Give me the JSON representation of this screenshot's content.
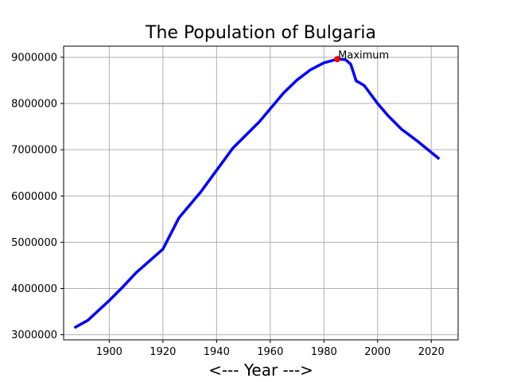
{
  "chart_data": {
    "type": "line",
    "title": "The Population of Bulgaria",
    "xlabel": "<--- Year --->",
    "ylabel": "",
    "xlim": [
      1883,
      2030
    ],
    "ylim": [
      2890000,
      9240000
    ],
    "xticks": [
      1900,
      1920,
      1940,
      1960,
      1980,
      2000,
      2020
    ],
    "yticks": [
      3000000,
      4000000,
      5000000,
      6000000,
      7000000,
      8000000,
      9000000
    ],
    "grid": true,
    "series": [
      {
        "color": "#0000ff",
        "points": [
          [
            1887,
            3150000
          ],
          [
            1892,
            3310000
          ],
          [
            1900,
            3740000
          ],
          [
            1905,
            4030000
          ],
          [
            1910,
            4340000
          ],
          [
            1920,
            4850000
          ],
          [
            1926,
            5530000
          ],
          [
            1934,
            6080000
          ],
          [
            1946,
            7030000
          ],
          [
            1956,
            7610000
          ],
          [
            1965,
            8230000
          ],
          [
            1970,
            8510000
          ],
          [
            1975,
            8730000
          ],
          [
            1980,
            8880000
          ],
          [
            1985,
            8960000
          ],
          [
            1988,
            8950000
          ],
          [
            1990,
            8850000
          ],
          [
            1992,
            8490000
          ],
          [
            1995,
            8390000
          ],
          [
            2000,
            8000000
          ],
          [
            2004,
            7730000
          ],
          [
            2009,
            7440000
          ],
          [
            2015,
            7180000
          ],
          [
            2023,
            6800000
          ]
        ]
      }
    ],
    "annotations": [
      {
        "text": "Maximum",
        "x": 1985,
        "y": 8960000,
        "marker_color": "#ff0000"
      }
    ]
  }
}
